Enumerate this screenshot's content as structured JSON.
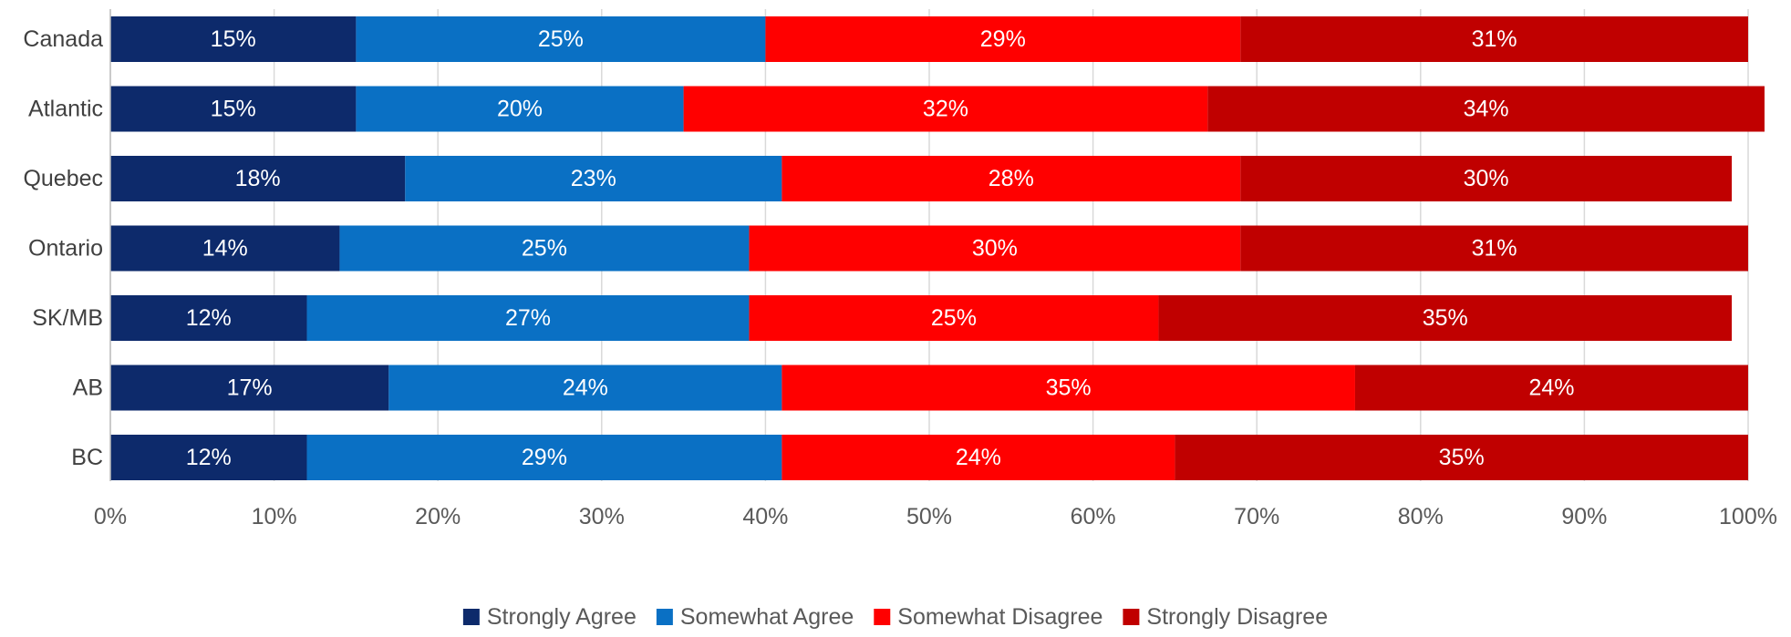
{
  "chart_data": {
    "type": "bar",
    "orientation": "horizontal",
    "stacked": true,
    "title": "",
    "xlabel": "",
    "ylabel": "",
    "xlim": [
      0,
      100
    ],
    "x_ticks": [
      "0%",
      "10%",
      "20%",
      "30%",
      "40%",
      "50%",
      "60%",
      "70%",
      "80%",
      "90%",
      "100%"
    ],
    "grid": "vertical",
    "legend_position": "bottom",
    "categories": [
      "Canada",
      "Atlantic",
      "Quebec",
      "Ontario",
      "SK/MB",
      "AB",
      "BC"
    ],
    "series": [
      {
        "name": "Strongly Agree",
        "color": "#0d2a6b",
        "values": [
          15,
          15,
          18,
          14,
          12,
          17,
          12
        ]
      },
      {
        "name": "Somewhat Agree",
        "color": "#0a70c4",
        "values": [
          25,
          20,
          23,
          25,
          27,
          24,
          29
        ]
      },
      {
        "name": "Somewhat Disagree",
        "color": "#ff0000",
        "values": [
          29,
          32,
          28,
          30,
          25,
          35,
          24
        ]
      },
      {
        "name": "Strongly Disagree",
        "color": "#c00000",
        "values": [
          31,
          34,
          30,
          31,
          35,
          24,
          35
        ]
      }
    ],
    "value_label_suffix": "%"
  }
}
